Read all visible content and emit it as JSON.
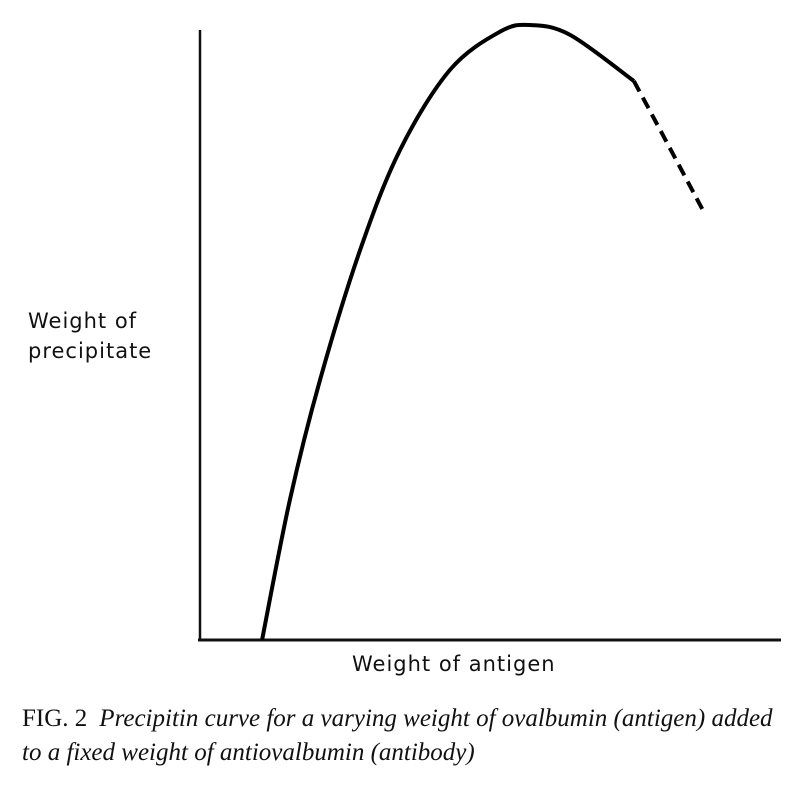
{
  "chart_data": {
    "type": "line",
    "title": "",
    "xlabel": "Weight of antigen",
    "ylabel_lines": [
      "Weight of",
      "precipitate"
    ],
    "ylabel": "Weight of precipitate",
    "xlim": [
      0,
      100
    ],
    "ylim": [
      0,
      100
    ],
    "grid": false,
    "ticks": false,
    "series": [
      {
        "style": "solid",
        "color": "#000000",
        "x": [
          10.7,
          15.5,
          20.7,
          27.6,
          34.5,
          43.1,
          51.7,
          56.9,
          63.8,
          74.8
        ],
        "y": [
          0,
          22.8,
          42.3,
          63.4,
          79.7,
          92.7,
          98.9,
          100,
          98.4,
          90.9
        ]
      },
      {
        "style": "dashed",
        "color": "#000000",
        "x": [
          74.8,
          79.3,
          86.7
        ],
        "y": [
          90.9,
          83.0,
          69.9
        ]
      }
    ]
  },
  "caption": {
    "label": "FIG. 2",
    "text": "Precipitin curve for a varying weight of ovalbumin (antigen) added to a fixed weight of antiovalbumin (antibody)"
  }
}
